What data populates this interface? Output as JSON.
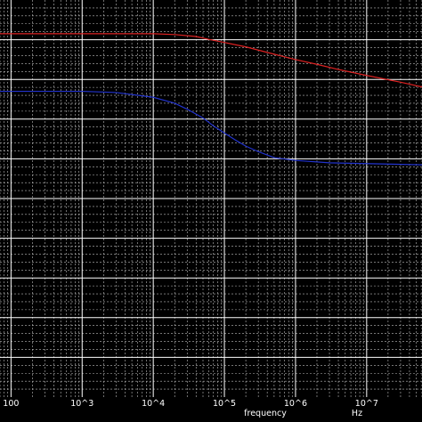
{
  "chart_data": {
    "type": "line",
    "x_scale": "log",
    "xlim": [
      70,
      60000000
    ],
    "ylim": [
      0,
      1
    ],
    "grid": true,
    "background": "#000000",
    "grid_major_color": "#ffffff",
    "grid_minor_color": "#bbbbbb",
    "x_tick_labels": [
      {
        "value": 100,
        "label": "100"
      },
      {
        "value": 1000,
        "label": "10^3"
      },
      {
        "value": 10000,
        "label": "10^4"
      },
      {
        "value": 100000,
        "label": "10^5"
      },
      {
        "value": 1000000,
        "label": "10^6"
      },
      {
        "value": 10000000,
        "label": "10^7"
      }
    ],
    "xlabel": "frequency",
    "xunit": "Hz",
    "series": [
      {
        "color": "#dd2222",
        "x": [
          70,
          100,
          1000,
          10000,
          20000,
          40000,
          60000,
          100000,
          200000,
          400000,
          700000,
          1000000,
          2000000,
          4000000,
          10000000,
          30000000,
          60000000
        ],
        "y": [
          0.915,
          0.915,
          0.915,
          0.915,
          0.913,
          0.908,
          0.901,
          0.893,
          0.882,
          0.868,
          0.857,
          0.85,
          0.838,
          0.825,
          0.81,
          0.793,
          0.781
        ]
      },
      {
        "color": "#2233cc",
        "x": [
          70,
          100,
          1000,
          3000,
          10000,
          20000,
          30000,
          50000,
          70000,
          100000,
          150000,
          200000,
          300000,
          500000,
          1000000,
          3000000,
          10000000,
          60000000
        ],
        "y": [
          0.77,
          0.77,
          0.77,
          0.767,
          0.755,
          0.74,
          0.725,
          0.703,
          0.683,
          0.665,
          0.645,
          0.632,
          0.618,
          0.603,
          0.596,
          0.59,
          0.588,
          0.585
        ]
      }
    ]
  }
}
